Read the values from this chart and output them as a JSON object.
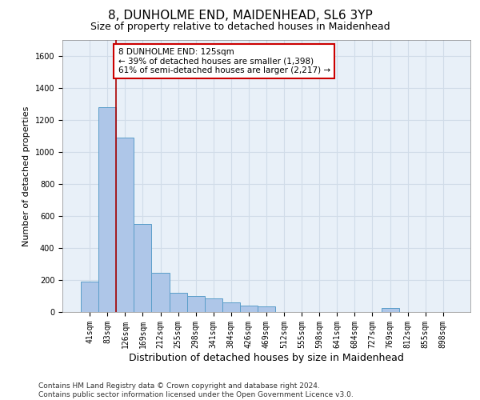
{
  "title": "8, DUNHOLME END, MAIDENHEAD, SL6 3YP",
  "subtitle": "Size of property relative to detached houses in Maidenhead",
  "xlabel": "Distribution of detached houses by size in Maidenhead",
  "ylabel": "Number of detached properties",
  "categories": [
    "41sqm",
    "83sqm",
    "126sqm",
    "169sqm",
    "212sqm",
    "255sqm",
    "298sqm",
    "341sqm",
    "384sqm",
    "426sqm",
    "469sqm",
    "512sqm",
    "555sqm",
    "598sqm",
    "641sqm",
    "684sqm",
    "727sqm",
    "769sqm",
    "812sqm",
    "855sqm",
    "898sqm"
  ],
  "values": [
    190,
    1280,
    1090,
    550,
    245,
    120,
    100,
    85,
    60,
    40,
    35,
    0,
    0,
    0,
    0,
    0,
    0,
    25,
    0,
    0,
    0
  ],
  "bar_color": "#aec6e8",
  "bar_edge_color": "#5a9ec9",
  "grid_color": "#d0dce8",
  "background_color": "#e8f0f8",
  "annotation_box_text": "8 DUNHOLME END: 125sqm\n← 39% of detached houses are smaller (1,398)\n61% of semi-detached houses are larger (2,217) →",
  "annotation_box_color": "#cc0000",
  "vline_x": 1.5,
  "ylim": [
    0,
    1700
  ],
  "yticks": [
    0,
    200,
    400,
    600,
    800,
    1000,
    1200,
    1400,
    1600
  ],
  "footer": "Contains HM Land Registry data © Crown copyright and database right 2024.\nContains public sector information licensed under the Open Government Licence v3.0.",
  "title_fontsize": 11,
  "subtitle_fontsize": 9,
  "xlabel_fontsize": 9,
  "ylabel_fontsize": 8,
  "tick_fontsize": 7,
  "annot_fontsize": 7.5,
  "footer_fontsize": 6.5
}
